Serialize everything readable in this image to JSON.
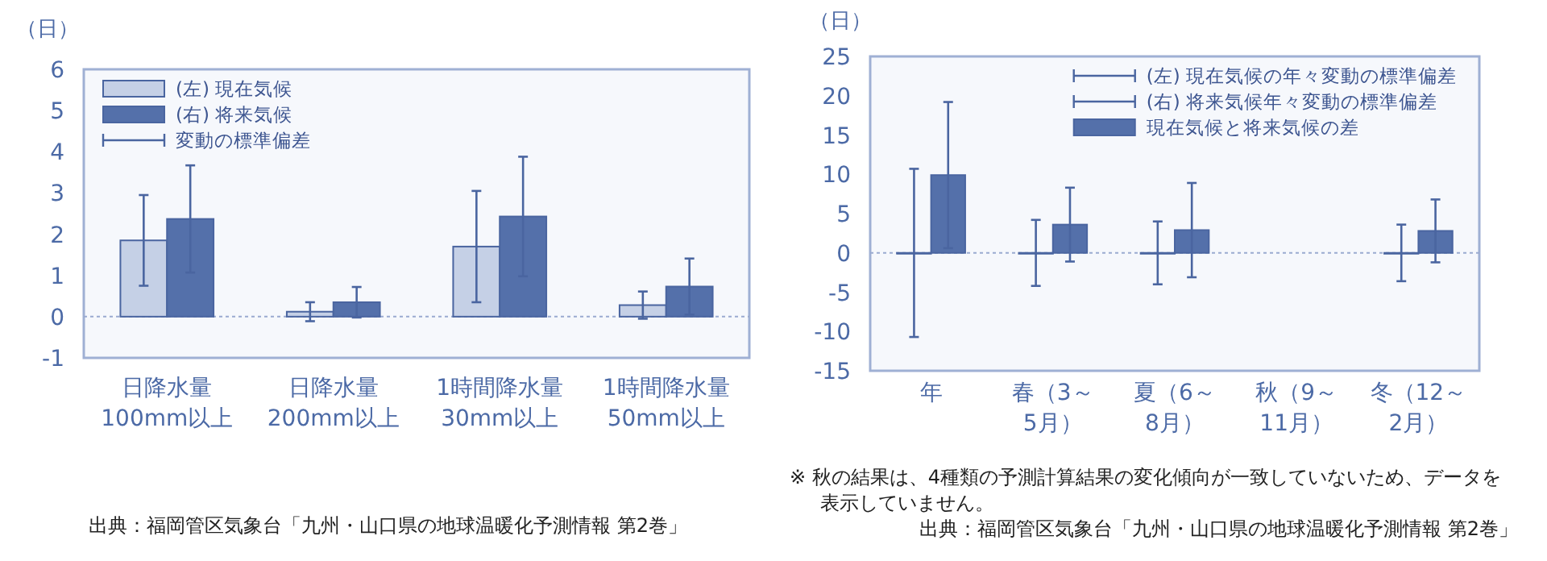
{
  "chart_data": [
    {
      "type": "bar",
      "ylabel": "（日）",
      "categories": [
        "日降水量\n100mm以上",
        "日降水量\n200mm以上",
        "1時間降水量\n30mm以上",
        "1時間降水量\n50mm以上"
      ],
      "series": [
        {
          "name": "(左) 現在気候",
          "color": "#c5d0e6",
          "values": [
            1.85,
            0.12,
            1.7,
            0.28
          ],
          "errors": [
            1.1,
            0.23,
            1.35,
            0.33
          ]
        },
        {
          "name": "(右) 将来気候",
          "color": "#5470aa",
          "values": [
            2.37,
            0.35,
            2.43,
            0.73
          ],
          "errors": [
            1.3,
            0.37,
            1.45,
            0.68
          ]
        }
      ],
      "ylim": [
        -1,
        6
      ],
      "yticks": [
        -1,
        0,
        1,
        2,
        3,
        4,
        5,
        6
      ],
      "ref_lines": [
        {
          "axis": "y",
          "value": 0,
          "color": "#9aaad0",
          "line_style": "dotted"
        }
      ],
      "legend": "top left",
      "annotations": [
        "変動の標準偏差",
        "出典：福岡管区気象台「九州・山口県の地球温暖化予測情報 第2巻」"
      ]
    },
    {
      "type": "bar",
      "ylabel": "（日）",
      "categories": [
        "年",
        "春（3～5月）",
        "夏（6～8月）",
        "秋（9～11月）",
        "冬（12～2月）"
      ],
      "series": [
        {
          "name": "(左) 現在気候の年々変動の標準偏差",
          "color": "#4a65a0",
          "values": [
            0,
            0,
            0,
            null,
            0
          ],
          "errors": [
            10.7,
            4.2,
            4.0,
            null,
            3.6
          ]
        },
        {
          "name": "現在気候と将来気候の差",
          "color": "#5470aa",
          "values": [
            9.9,
            3.6,
            2.9,
            null,
            2.8
          ],
          "errors": [
            9.3,
            4.7,
            6.0,
            null,
            4.0
          ]
        }
      ],
      "ylim": [
        -15,
        25
      ],
      "yticks": [
        -15,
        -10,
        -5,
        0,
        5,
        10,
        15,
        20,
        25
      ],
      "ref_lines": [
        {
          "axis": "y",
          "value": 0,
          "color": "#9aaad0",
          "line_style": "dotted"
        }
      ],
      "legend": "top right",
      "annotations": [
        "(右) 将来気候年々変動の標準偏差",
        "※ 秋の結果は、4種類の予測計算結果の変化傾向が一致していないため、データを表示していません。",
        "出典：福岡管区気象台「九州・山口県の地球温暖化予測情報 第2巻」"
      ]
    }
  ]
}
